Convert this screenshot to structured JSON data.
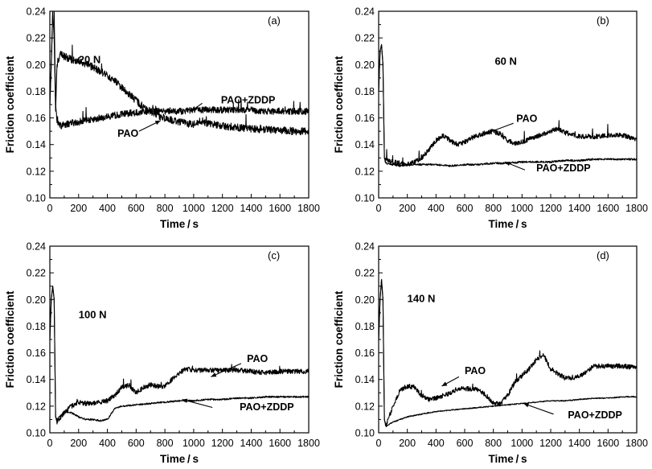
{
  "chart_data": [
    {
      "type": "line",
      "panel_label": "(a)",
      "annotation": "20 N",
      "xlabel": "Time / s",
      "ylabel": "Friction coefficient",
      "xlim": [
        0,
        1800
      ],
      "ylim": [
        0.1,
        0.24
      ],
      "xticks": [
        "0",
        "200",
        "400",
        "600",
        "800",
        "1000",
        "1200",
        "1400",
        "1600",
        "1800"
      ],
      "yticks": [
        "0.10",
        "0.12",
        "0.14",
        "0.16",
        "0.18",
        "0.20",
        "0.22",
        "0.24"
      ],
      "series": [
        {
          "name": "PAO+ZDDP",
          "x": [
            0,
            10,
            20,
            30,
            40,
            50,
            60,
            80,
            100,
            150,
            200,
            300,
            400,
            500,
            600,
            700,
            800,
            900,
            1000,
            1100,
            1200,
            1300,
            1400,
            1500,
            1600,
            1700,
            1800
          ],
          "y": [
            0.17,
            0.2,
            0.24,
            0.24,
            0.17,
            0.158,
            0.155,
            0.154,
            0.155,
            0.156,
            0.157,
            0.159,
            0.161,
            0.163,
            0.164,
            0.165,
            0.165,
            0.165,
            0.166,
            0.166,
            0.166,
            0.166,
            0.166,
            0.165,
            0.165,
            0.165,
            0.165
          ],
          "jitter": 0.0025
        },
        {
          "name": "PAO",
          "x": [
            0,
            10,
            20,
            30,
            40,
            50,
            70,
            100,
            150,
            200,
            300,
            400,
            500,
            550,
            600,
            650,
            700,
            750,
            800,
            900,
            1000,
            1050,
            1100,
            1200,
            1300,
            1400,
            1500,
            1600,
            1700,
            1800
          ],
          "y": [
            0.17,
            0.2,
            0.24,
            0.22,
            0.165,
            0.2,
            0.208,
            0.206,
            0.204,
            0.203,
            0.198,
            0.192,
            0.183,
            0.178,
            0.173,
            0.168,
            0.165,
            0.162,
            0.16,
            0.157,
            0.155,
            0.158,
            0.156,
            0.154,
            0.153,
            0.152,
            0.151,
            0.151,
            0.15,
            0.15
          ],
          "jitter": 0.0028
        }
      ],
      "annotations": [
        {
          "text": "20 N"
        },
        {
          "text": "PAO+ZDDP"
        },
        {
          "text": "PAO"
        }
      ]
    },
    {
      "type": "line",
      "panel_label": "(b)",
      "annotation": "60 N",
      "xlabel": "Time / s",
      "ylabel": "Friction coefficient",
      "xlim": [
        0,
        1800
      ],
      "ylim": [
        0.1,
        0.24
      ],
      "xticks": [
        "0",
        "200",
        "400",
        "600",
        "800",
        "1000",
        "1200",
        "1400",
        "1600",
        "1800"
      ],
      "yticks": [
        "0.10",
        "0.12",
        "0.14",
        "0.16",
        "0.18",
        "0.20",
        "0.22",
        "0.24"
      ],
      "series": [
        {
          "name": "PAO",
          "x": [
            0,
            10,
            20,
            30,
            40,
            50,
            100,
            150,
            200,
            250,
            300,
            350,
            400,
            450,
            500,
            550,
            600,
            650,
            700,
            750,
            800,
            850,
            900,
            950,
            1000,
            1100,
            1200,
            1250,
            1300,
            1400,
            1500,
            1600,
            1700,
            1800
          ],
          "y": [
            0.18,
            0.21,
            0.215,
            0.2,
            0.13,
            0.128,
            0.127,
            0.126,
            0.125,
            0.127,
            0.13,
            0.136,
            0.143,
            0.147,
            0.143,
            0.14,
            0.142,
            0.145,
            0.147,
            0.149,
            0.15,
            0.148,
            0.143,
            0.141,
            0.142,
            0.146,
            0.15,
            0.152,
            0.149,
            0.146,
            0.146,
            0.147,
            0.147,
            0.144
          ],
          "jitter": 0.0018
        },
        {
          "name": "PAO+ZDDP",
          "x": [
            0,
            10,
            20,
            30,
            40,
            50,
            100,
            150,
            200,
            300,
            400,
            500,
            600,
            700,
            800,
            900,
            1000,
            1100,
            1200,
            1300,
            1400,
            1500,
            1600,
            1700,
            1800
          ],
          "y": [
            0.18,
            0.21,
            0.215,
            0.2,
            0.13,
            0.126,
            0.125,
            0.124,
            0.125,
            0.125,
            0.125,
            0.124,
            0.125,
            0.125,
            0.126,
            0.126,
            0.127,
            0.127,
            0.127,
            0.128,
            0.128,
            0.129,
            0.129,
            0.129,
            0.129
          ],
          "jitter": 0.0007
        }
      ],
      "annotations": [
        {
          "text": "60 N"
        },
        {
          "text": "PAO"
        },
        {
          "text": "PAO+ZDDP"
        }
      ]
    },
    {
      "type": "line",
      "panel_label": "(c)",
      "annotation": "100 N",
      "xlabel": "Time / s",
      "ylabel": "Friction coefficient",
      "xlim": [
        0,
        1800
      ],
      "ylim": [
        0.1,
        0.24
      ],
      "xticks": [
        "0",
        "200",
        "400",
        "600",
        "800",
        "1000",
        "1200",
        "1400",
        "1600",
        "1800"
      ],
      "yticks": [
        "0.10",
        "0.12",
        "0.14",
        "0.16",
        "0.18",
        "0.20",
        "0.22",
        "0.24"
      ],
      "series": [
        {
          "name": "PAO",
          "x": [
            0,
            10,
            20,
            30,
            40,
            50,
            100,
            150,
            200,
            250,
            300,
            350,
            400,
            450,
            500,
            550,
            600,
            650,
            700,
            750,
            800,
            850,
            900,
            950,
            1000,
            1100,
            1200,
            1300,
            1400,
            1500,
            1600,
            1700,
            1800
          ],
          "y": [
            0.17,
            0.2,
            0.21,
            0.2,
            0.112,
            0.108,
            0.115,
            0.12,
            0.123,
            0.122,
            0.122,
            0.123,
            0.124,
            0.128,
            0.134,
            0.136,
            0.13,
            0.134,
            0.136,
            0.135,
            0.135,
            0.14,
            0.145,
            0.148,
            0.147,
            0.147,
            0.147,
            0.147,
            0.146,
            0.145,
            0.146,
            0.146,
            0.146
          ],
          "jitter": 0.0018
        },
        {
          "name": "PAO+ZDDP",
          "x": [
            0,
            10,
            20,
            30,
            40,
            50,
            100,
            150,
            200,
            250,
            300,
            350,
            400,
            450,
            500,
            600,
            700,
            800,
            900,
            1000,
            1100,
            1200,
            1300,
            1400,
            1500,
            1600,
            1700,
            1800
          ],
          "y": [
            0.17,
            0.2,
            0.21,
            0.2,
            0.112,
            0.11,
            0.116,
            0.115,
            0.112,
            0.11,
            0.11,
            0.109,
            0.11,
            0.118,
            0.12,
            0.121,
            0.122,
            0.123,
            0.124,
            0.124,
            0.125,
            0.125,
            0.126,
            0.126,
            0.127,
            0.127,
            0.127,
            0.127
          ],
          "jitter": 0.0006
        }
      ],
      "annotations": [
        {
          "text": "100 N"
        },
        {
          "text": "PAO"
        },
        {
          "text": "PAO+ZDDP"
        }
      ]
    },
    {
      "type": "line",
      "panel_label": "(d)",
      "annotation": "140 N",
      "xlabel": "Time / s",
      "ylabel": "Friction coefficient",
      "xlim": [
        0,
        1800
      ],
      "ylim": [
        0.1,
        0.24
      ],
      "xticks": [
        "0",
        "200",
        "400",
        "600",
        "800",
        "1000",
        "1200",
        "1400",
        "1600",
        "1800"
      ],
      "yticks": [
        "0.10",
        "0.12",
        "0.14",
        "0.16",
        "0.18",
        "0.20",
        "0.22",
        "0.24"
      ],
      "series": [
        {
          "name": "PAO",
          "x": [
            0,
            10,
            20,
            30,
            40,
            50,
            100,
            150,
            200,
            250,
            300,
            350,
            400,
            450,
            500,
            550,
            600,
            650,
            700,
            750,
            800,
            850,
            900,
            950,
            1000,
            1050,
            1100,
            1150,
            1200,
            1300,
            1400,
            1500,
            1600,
            1700,
            1800
          ],
          "y": [
            0.17,
            0.2,
            0.215,
            0.2,
            0.11,
            0.105,
            0.12,
            0.132,
            0.135,
            0.134,
            0.128,
            0.125,
            0.126,
            0.128,
            0.13,
            0.133,
            0.133,
            0.133,
            0.132,
            0.128,
            0.122,
            0.122,
            0.128,
            0.138,
            0.143,
            0.148,
            0.155,
            0.158,
            0.148,
            0.141,
            0.142,
            0.15,
            0.15,
            0.15,
            0.149
          ],
          "jitter": 0.0018
        },
        {
          "name": "PAO+ZDDP",
          "x": [
            0,
            10,
            20,
            30,
            40,
            50,
            100,
            150,
            200,
            300,
            400,
            500,
            600,
            700,
            800,
            900,
            1000,
            1100,
            1200,
            1300,
            1400,
            1500,
            1600,
            1700,
            1800
          ],
          "y": [
            0.17,
            0.2,
            0.215,
            0.2,
            0.11,
            0.105,
            0.108,
            0.11,
            0.112,
            0.114,
            0.116,
            0.117,
            0.118,
            0.119,
            0.12,
            0.121,
            0.122,
            0.123,
            0.124,
            0.124,
            0.125,
            0.126,
            0.126,
            0.127,
            0.127
          ],
          "jitter": 0.0004
        }
      ],
      "annotations": [
        {
          "text": "140 N"
        },
        {
          "text": "PAO"
        },
        {
          "text": "PAO+ZDDP"
        }
      ]
    }
  ]
}
